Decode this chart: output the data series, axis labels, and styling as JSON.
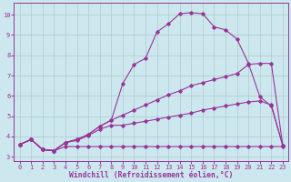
{
  "background_color": "#cce8ee",
  "grid_color": "#aacccc",
  "line_color": "#993399",
  "marker": "D",
  "marker_size": 1.8,
  "line_width": 0.8,
  "xlim": [
    -0.5,
    23.5
  ],
  "ylim": [
    2.8,
    10.6
  ],
  "xticks": [
    0,
    1,
    2,
    3,
    4,
    5,
    6,
    7,
    8,
    9,
    10,
    11,
    12,
    13,
    14,
    15,
    16,
    17,
    18,
    19,
    20,
    21,
    22,
    23
  ],
  "yticks": [
    3,
    4,
    5,
    6,
    7,
    8,
    9,
    10
  ],
  "xlabel": "Windchill (Refroidissement éolien,°C)",
  "xlabel_fontsize": 5.8,
  "tick_fontsize": 5.0,
  "series": [
    {
      "x": [
        0,
        1,
        2,
        3,
        4,
        5,
        6,
        7,
        8,
        9,
        10,
        11,
        12,
        13,
        14,
        15,
        16,
        17,
        18,
        19,
        20,
        21,
        22,
        23
      ],
      "y": [
        3.6,
        3.85,
        3.35,
        3.3,
        3.5,
        3.5,
        3.5,
        3.5,
        3.5,
        3.5,
        3.5,
        3.5,
        3.5,
        3.5,
        3.5,
        3.5,
        3.5,
        3.5,
        3.5,
        3.5,
        3.5,
        3.5,
        3.5,
        3.5
      ],
      "has_marker": true
    },
    {
      "x": [
        0,
        1,
        2,
        3,
        4,
        5,
        6,
        7,
        8,
        9,
        10,
        11,
        12,
        13,
        14,
        15,
        16,
        17,
        18,
        19,
        20,
        21,
        22,
        23
      ],
      "y": [
        3.6,
        3.85,
        3.35,
        3.3,
        3.7,
        3.8,
        4.05,
        4.35,
        4.55,
        4.55,
        4.65,
        4.75,
        4.85,
        4.95,
        5.05,
        5.15,
        5.3,
        5.4,
        5.5,
        5.6,
        5.7,
        5.75,
        5.55,
        3.55
      ],
      "has_marker": true
    },
    {
      "x": [
        0,
        1,
        2,
        3,
        4,
        5,
        6,
        7,
        8,
        9,
        10,
        11,
        12,
        13,
        14,
        15,
        16,
        17,
        18,
        19,
        20,
        21,
        22,
        23
      ],
      "y": [
        3.6,
        3.85,
        3.35,
        3.3,
        3.7,
        3.85,
        4.1,
        4.5,
        4.8,
        5.05,
        5.3,
        5.55,
        5.8,
        6.05,
        6.25,
        6.5,
        6.65,
        6.8,
        6.95,
        7.1,
        7.55,
        7.6,
        7.6,
        3.55
      ],
      "has_marker": true
    },
    {
      "x": [
        0,
        1,
        2,
        3,
        4,
        5,
        6,
        7,
        8,
        9,
        10,
        11,
        12,
        13,
        14,
        15,
        16,
        17,
        18,
        19,
        20,
        21,
        22,
        23
      ],
      "y": [
        3.6,
        3.85,
        3.35,
        3.3,
        3.7,
        3.85,
        4.1,
        4.5,
        4.8,
        6.6,
        7.55,
        7.85,
        9.15,
        9.55,
        10.05,
        10.1,
        10.05,
        9.4,
        9.25,
        8.8,
        7.6,
        5.95,
        5.5,
        3.55
      ],
      "has_marker": true
    }
  ]
}
